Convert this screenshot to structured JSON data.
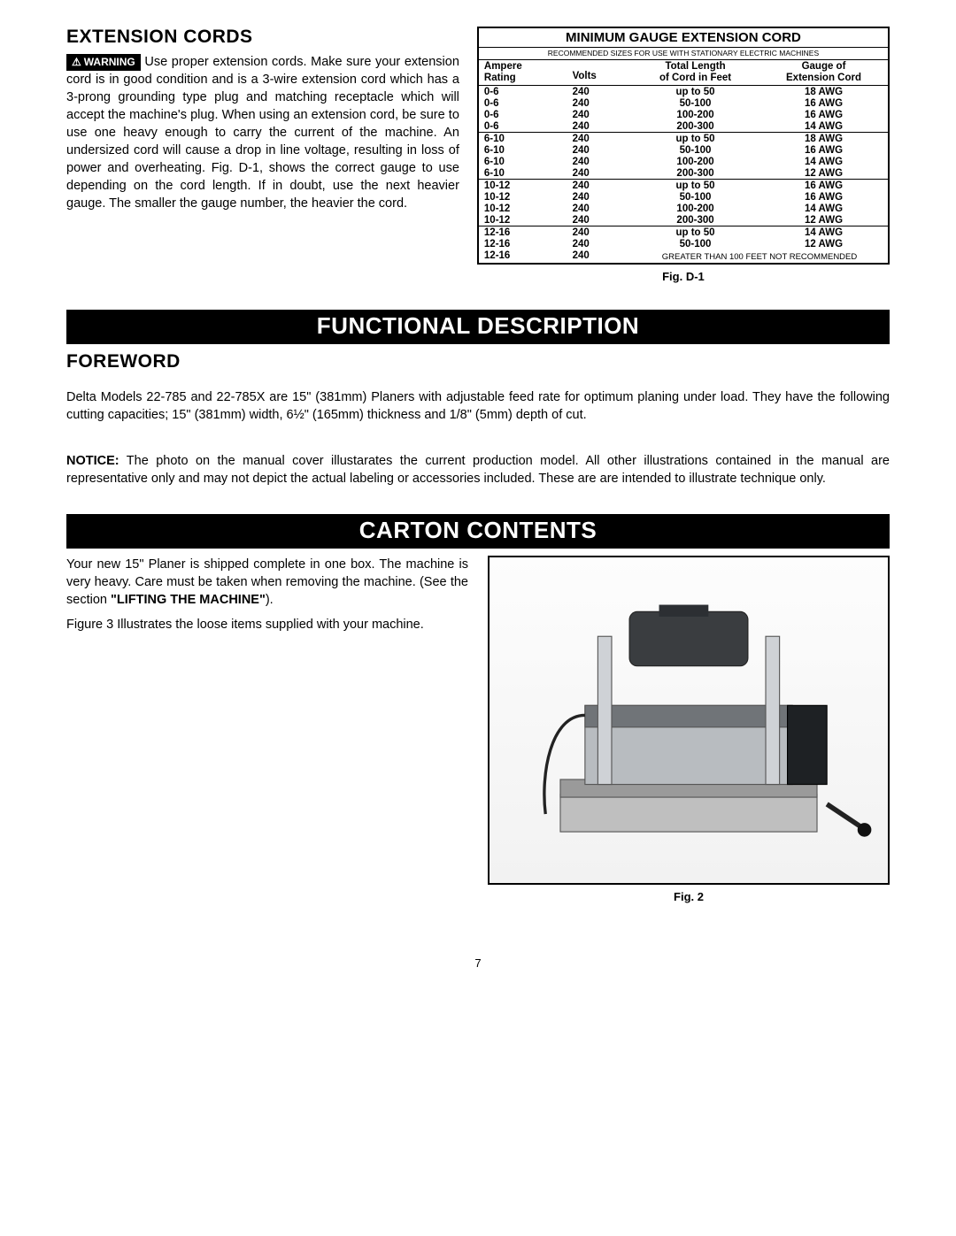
{
  "page_number": "7",
  "ext_cords": {
    "heading": "EXTENSION CORDS",
    "warning_label": "WARNING",
    "text": "Use proper extension cords. Make sure your extension cord is in good condition and is a 3-wire extension cord which has a 3-prong grounding type plug and matching receptacle which will accept the machine's plug. When using an extension cord, be sure to use one heavy enough to carry the current of the machine. An undersized cord will cause a drop in line voltage, resulting in loss of power and overheating. Fig. D-1, shows the correct gauge to use depending on the cord length. If in doubt, use the next heavier gauge. The smaller the gauge number, the heavier the cord."
  },
  "gauge": {
    "title": "MINIMUM GAUGE EXTENSION CORD",
    "subtitle": "RECOMMENDED SIZES FOR USE WITH STATIONARY ELECTRIC MACHINES",
    "headers": {
      "ampere_l1": "Ampere",
      "ampere_l2": "Rating",
      "volts": "Volts",
      "length_l1": "Total Length",
      "length_l2": "of Cord in Feet",
      "gauge_l1": "Gauge of",
      "gauge_l2": "Extension Cord"
    },
    "groups": [
      {
        "rows": [
          {
            "a": "0-6",
            "v": "240",
            "l": "up to 50",
            "g": "18 AWG"
          },
          {
            "a": "0-6",
            "v": "240",
            "l": "50-100",
            "g": "16 AWG"
          },
          {
            "a": "0-6",
            "v": "240",
            "l": "100-200",
            "g": "16 AWG"
          },
          {
            "a": "0-6",
            "v": "240",
            "l": "200-300",
            "g": "14 AWG"
          }
        ]
      },
      {
        "rows": [
          {
            "a": "6-10",
            "v": "240",
            "l": "up to 50",
            "g": "18 AWG"
          },
          {
            "a": "6-10",
            "v": "240",
            "l": "50-100",
            "g": "16 AWG"
          },
          {
            "a": "6-10",
            "v": "240",
            "l": "100-200",
            "g": "14 AWG"
          },
          {
            "a": "6-10",
            "v": "240",
            "l": "200-300",
            "g": "12 AWG"
          }
        ]
      },
      {
        "rows": [
          {
            "a": "10-12",
            "v": "240",
            "l": "up to 50",
            "g": "16 AWG"
          },
          {
            "a": "10-12",
            "v": "240",
            "l": "50-100",
            "g": "16 AWG"
          },
          {
            "a": "10-12",
            "v": "240",
            "l": "100-200",
            "g": "14 AWG"
          },
          {
            "a": "10-12",
            "v": "240",
            "l": "200-300",
            "g": "12 AWG"
          }
        ]
      },
      {
        "rows": [
          {
            "a": "12-16",
            "v": "240",
            "l": "up to 50",
            "g": "14 AWG"
          },
          {
            "a": "12-16",
            "v": "240",
            "l": "50-100",
            "g": "12 AWG"
          }
        ],
        "note_row": {
          "a": "12-16",
          "v": "240",
          "note": "GREATER THAN 100 FEET NOT RECOMMENDED"
        }
      }
    ],
    "caption": "Fig. D-1"
  },
  "func": {
    "banner": "FUNCTIONAL DESCRIPTION",
    "foreword_heading": "FOREWORD",
    "foreword_text": "Delta Models 22-785 and 22-785X are 15\" (381mm) Planers with adjustable feed rate for optimum planing under load. They have the following cutting capacities; 15\" (381mm) width, 6½\" (165mm) thickness and 1/8\" (5mm) depth of cut.",
    "notice_label": "NOTICE:",
    "notice_text": " The photo on the manual cover illustarates the current production model. All other illustrations contained in the manual are representative only and may not depict the actual labeling or accessories included. These are are intended to illustrate technique only."
  },
  "carton": {
    "banner": "CARTON CONTENTS",
    "p1a": "Your new 15\" Planer is shipped complete in one box. The machine is very heavy. Care must be taken when removing the machine. (See the section ",
    "p1b": "\"LIFTING THE MACHINE\"",
    "p1c": ").",
    "p2": "Figure 3 Illustrates the loose items supplied with your machine.",
    "fig_caption": "Fig. 2"
  },
  "style": {
    "banner_bg": "#000000",
    "banner_fg": "#ffffff"
  }
}
